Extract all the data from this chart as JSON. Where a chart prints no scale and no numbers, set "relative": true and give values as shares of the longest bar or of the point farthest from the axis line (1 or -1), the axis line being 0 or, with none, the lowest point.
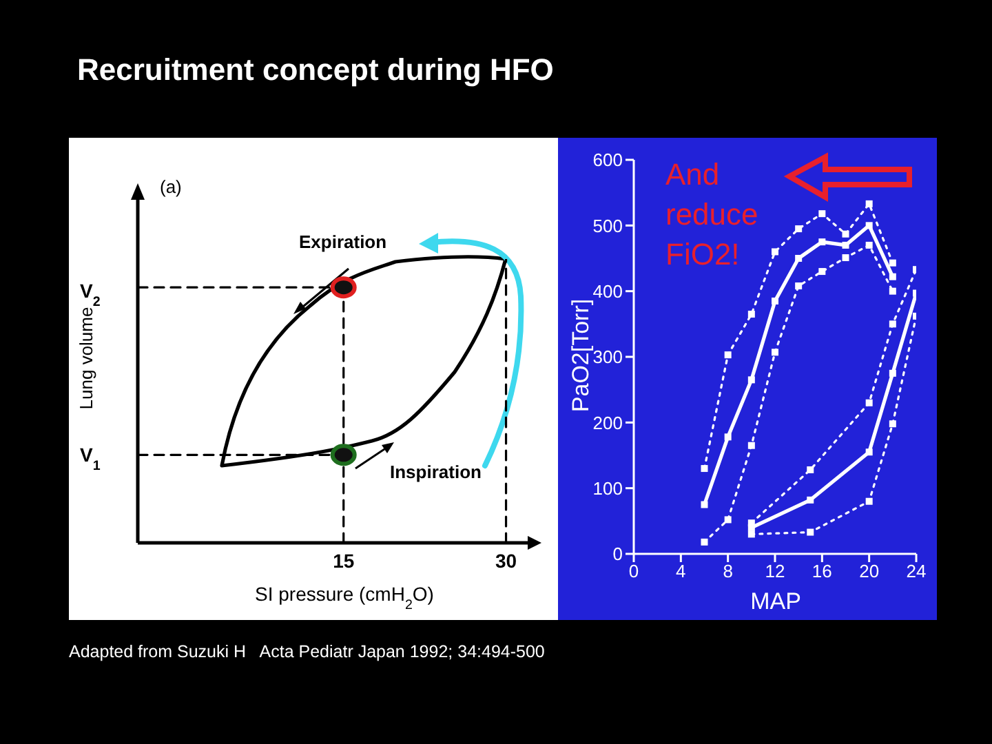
{
  "chart_data": [
    {
      "type": "line",
      "relative": true,
      "title": "Recruitment concept during HFO",
      "xlabel": "SI pressure (cmH$_{2}$O)",
      "ylabel": "Lung volume",
      "xlim": [
        -4,
        32
      ],
      "xticks": [
        15,
        30
      ],
      "annotations": [
        "(a)",
        "Expiration",
        "Inspiration",
        "Adapted from Suzuki H   Acta Pediatr Japan 1992; 34:494-500",
        "V$_{2}$",
        "V$_{1}$"
      ],
      "series": [
        {
          "color": "#000000",
          "line_style": "dashed",
          "x": [
            -4,
            15
          ],
          "values": [
            0.9,
            0.9
          ]
        },
        {
          "color": "#000000",
          "line_style": "dashed",
          "x": [
            -4,
            15
          ],
          "values": [
            0.31,
            0.31
          ]
        },
        {
          "color": "#000000",
          "line_style": "dashed",
          "x": [
            15,
            15
          ],
          "values": [
            0,
            0.9
          ]
        },
        {
          "color": "#000000",
          "line_style": "dashed",
          "x": [
            30,
            30
          ],
          "values": [
            0,
            1.0
          ]
        },
        {
          "type": "scatter",
          "colors": [
            "#e02020",
            "#1e6e1e"
          ],
          "x": [
            15,
            15
          ],
          "values": [
            0.9,
            0.31
          ]
        }
      ]
    },
    {
      "type": "line",
      "xlabel": "MAP",
      "ylabel": "PaO2[Torr]",
      "xlim": [
        0,
        24
      ],
      "xticks": [
        0,
        4,
        8,
        12,
        16,
        20,
        24
      ],
      "ylim": [
        0,
        600
      ],
      "yticks": [
        0,
        100,
        200,
        300,
        400,
        500,
        600
      ],
      "marker": "square",
      "annotations": [
        "And reduce FiO2!"
      ],
      "series": [
        {
          "color": "#ffffff",
          "x": [
            6,
            8,
            10,
            12,
            14,
            16,
            18,
            20,
            22
          ],
          "values": [
            75,
            178,
            265,
            385,
            450,
            475,
            470,
            500,
            422
          ]
        },
        {
          "color": "#ffffff",
          "x": [
            10,
            15,
            20,
            22,
            24
          ],
          "values": [
            40,
            82,
            155,
            275,
            397
          ]
        },
        {
          "color": "#ffffff",
          "line_style": "dotted",
          "x": [
            6,
            8,
            10,
            12,
            14,
            16,
            18,
            20,
            22
          ],
          "values": [
            130,
            303,
            365,
            460,
            495,
            518,
            487,
            533,
            443
          ]
        },
        {
          "color": "#ffffff",
          "line_style": "dotted",
          "x": [
            6,
            8,
            10,
            12,
            14,
            16,
            18,
            20,
            22
          ],
          "values": [
            18,
            52,
            165,
            307,
            408,
            430,
            451,
            470,
            400
          ]
        },
        {
          "color": "#ffffff",
          "line_style": "dotted",
          "x": [
            10,
            15,
            20,
            22,
            24
          ],
          "values": [
            47,
            128,
            230,
            350,
            433
          ]
        },
        {
          "color": "#ffffff",
          "line_style": "dotted",
          "x": [
            10,
            15,
            20,
            22,
            24
          ],
          "values": [
            30,
            33,
            80,
            198,
            362
          ]
        }
      ]
    }
  ]
}
